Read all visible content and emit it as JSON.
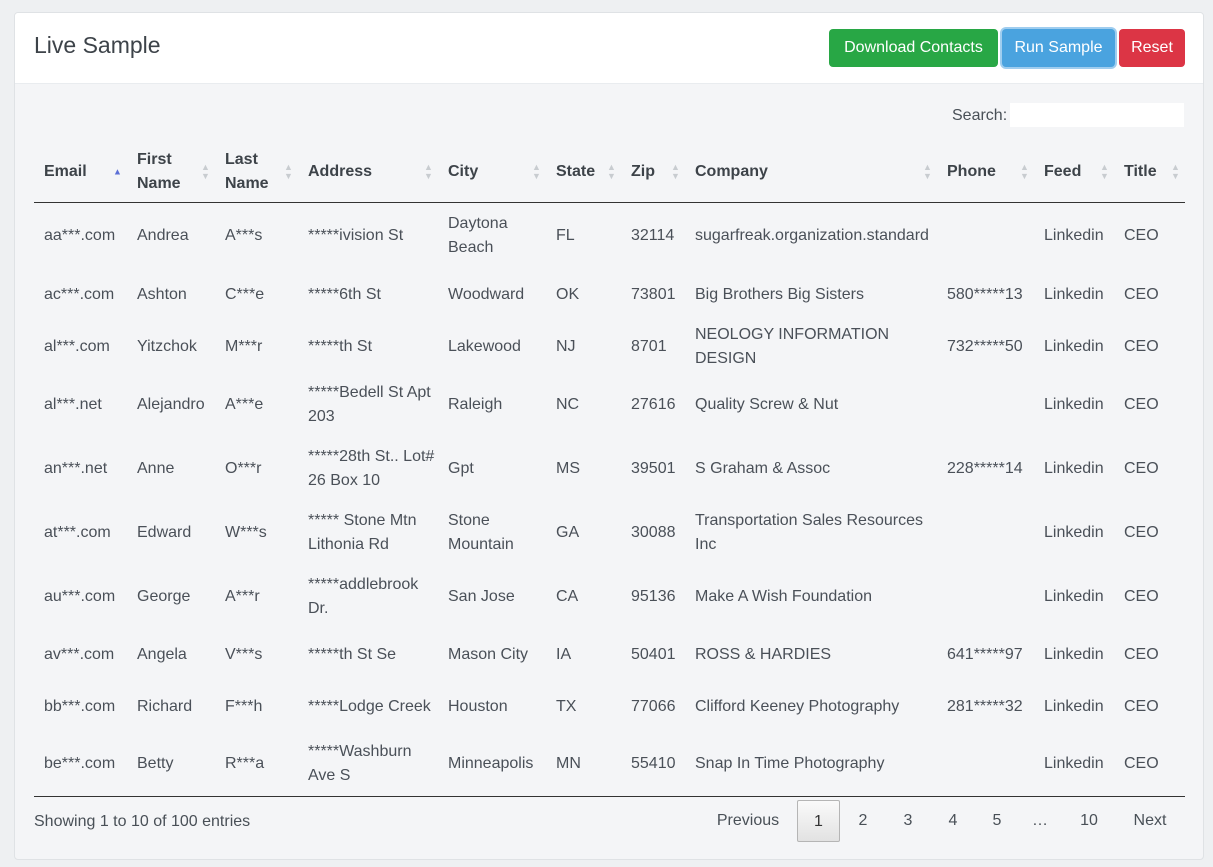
{
  "header": {
    "title": "Live Sample",
    "download_label": "Download Contacts",
    "run_label": "Run Sample",
    "reset_label": "Reset"
  },
  "search": {
    "label": "Search:",
    "value": ""
  },
  "columns": [
    {
      "label": "Email",
      "sort": "asc"
    },
    {
      "label": "First Name",
      "sort": "none"
    },
    {
      "label": "Last Name",
      "sort": "none"
    },
    {
      "label": "Address",
      "sort": "none"
    },
    {
      "label": "City",
      "sort": "none"
    },
    {
      "label": "State",
      "sort": "none"
    },
    {
      "label": "Zip",
      "sort": "none"
    },
    {
      "label": "Company",
      "sort": "none"
    },
    {
      "label": "Phone",
      "sort": "none"
    },
    {
      "label": "Feed",
      "sort": "none"
    },
    {
      "label": "Title",
      "sort": "none"
    }
  ],
  "rows": [
    [
      "aa***.com",
      "Andrea",
      "A***s",
      "*****ivision St",
      "Daytona Beach",
      "FL",
      "32114",
      "sugarfreak.organization.standard",
      "",
      "Linkedin",
      "CEO"
    ],
    [
      "ac***.com",
      "Ashton",
      "C***e",
      "*****6th St",
      "Woodward",
      "OK",
      "73801",
      "Big Brothers Big Sisters",
      "580*****13",
      "Linkedin",
      "CEO"
    ],
    [
      "al***.com",
      "Yitzchok",
      "M***r",
      "*****th St",
      "Lakewood",
      "NJ",
      "8701",
      "NEOLOGY INFORMATION DESIGN",
      "732*****50",
      "Linkedin",
      "CEO"
    ],
    [
      "al***.net",
      "Alejandro",
      "A***e",
      "*****Bedell St Apt 203",
      "Raleigh",
      "NC",
      "27616",
      "Quality Screw & Nut",
      "",
      "Linkedin",
      "CEO"
    ],
    [
      "an***.net",
      "Anne",
      "O***r",
      "*****28th St.. Lot# 26 Box 10",
      "Gpt",
      "MS",
      "39501",
      "S Graham & Assoc",
      "228*****14",
      "Linkedin",
      "CEO"
    ],
    [
      "at***.com",
      "Edward",
      "W***s",
      "***** Stone Mtn Lithonia Rd",
      "Stone Mountain",
      "GA",
      "30088",
      "Transportation Sales Resources Inc",
      "",
      "Linkedin",
      "CEO"
    ],
    [
      "au***.com",
      "George",
      "A***r",
      "*****addlebrook Dr.",
      "San Jose",
      "CA",
      "95136",
      "Make A Wish Foundation",
      "",
      "Linkedin",
      "CEO"
    ],
    [
      "av***.com",
      "Angela",
      "V***s",
      "*****th St Se",
      "Mason City",
      "IA",
      "50401",
      "ROSS & HARDIES",
      "641*****97",
      "Linkedin",
      "CEO"
    ],
    [
      "bb***.com",
      "Richard",
      "F***h",
      "*****Lodge Creek",
      "Houston",
      "TX",
      "77066",
      "Clifford Keeney Photography",
      "281*****32",
      "Linkedin",
      "CEO"
    ],
    [
      "be***.com",
      "Betty",
      "R***a",
      "*****Washburn Ave S",
      "Minneapolis",
      "MN",
      "55410",
      "Snap In Time Photography",
      "",
      "Linkedin",
      "CEO"
    ]
  ],
  "info": "Showing 1 to 10 of 100 entries",
  "pagination": {
    "previous": "Previous",
    "pages": [
      "1",
      "2",
      "3",
      "4",
      "5",
      "…",
      "10"
    ],
    "current": "1",
    "next": "Next"
  },
  "colors": {
    "download": "#28a745",
    "run": "#4aa3df",
    "reset": "#dc3545",
    "sort_active": "#5b6fd6"
  }
}
